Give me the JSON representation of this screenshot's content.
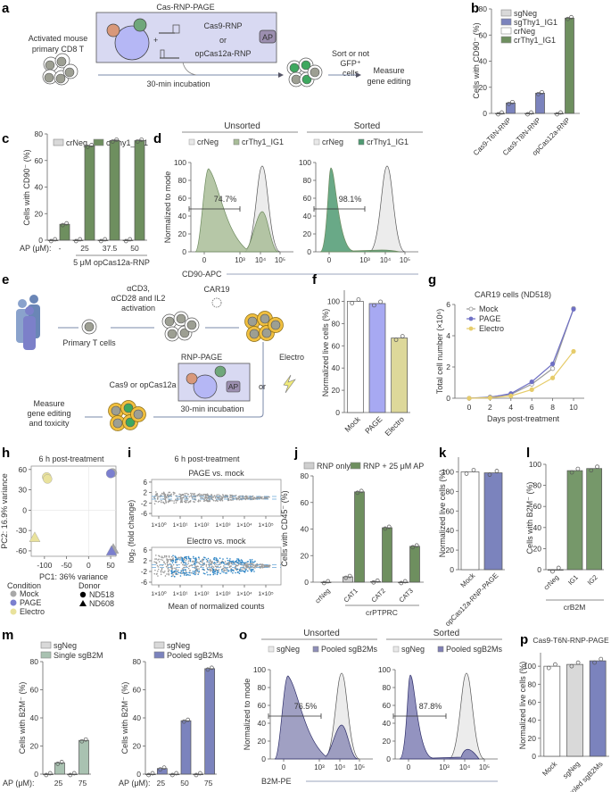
{
  "panels": {
    "a": {
      "label": "a",
      "box_title": "Cas-RNP-PAGE",
      "cas9": "Cas9-RNP",
      "or": "or",
      "opcas12a": "opCas12a-RNP",
      "ap": "AP",
      "plus": "+",
      "start": [
        "Activated mouse",
        "primary CD8 T"
      ],
      "incubation": "30-min incubation",
      "sort": [
        "Sort or not",
        "GFP⁺",
        "cells"
      ],
      "measure": [
        "Measure",
        "gene editing"
      ]
    },
    "e": {
      "label": "e",
      "activation": [
        "αCD3,",
        "αCD28 and IL2",
        "activation"
      ],
      "car": "CAR19",
      "primary": "Primary T cells",
      "rnp_page": "RNP-PAGE",
      "cas": "Cas9 or opCas12a",
      "ap": "AP",
      "incubation": "30-min incubation",
      "electro": "Electro",
      "or": "or",
      "measure": [
        "Measure",
        "gene editing",
        "and toxicity"
      ]
    }
  },
  "chart_data": [
    {
      "id": "b",
      "type": "bar",
      "label": "b",
      "ylabel": "Cells with CD90⁻ (%)",
      "ylim": [
        0,
        80
      ],
      "yticks": [
        0,
        20,
        40,
        60,
        80
      ],
      "categories": [
        "Cas9-T6N-RNP",
        "Cas9-T8N-RNP",
        "opCas12a-RNP"
      ],
      "legend": [
        {
          "name": "sgNeg",
          "color": "#d9d9d9"
        },
        {
          "name": "sgThy1_IG1",
          "color": "#7b83bd"
        },
        {
          "name": "crNeg",
          "color": "#ffffff"
        },
        {
          "name": "crThy1_IG1",
          "color": "#6e8f5f"
        }
      ],
      "series": [
        {
          "name": "sgNeg",
          "values": [
            0,
            0,
            null
          ]
        },
        {
          "name": "sgThy1_IG1",
          "values": [
            8,
            15.5,
            null
          ]
        },
        {
          "name": "crNeg",
          "values": [
            null,
            null,
            0
          ]
        },
        {
          "name": "crThy1_IG1",
          "values": [
            null,
            null,
            73
          ]
        }
      ]
    },
    {
      "id": "c",
      "type": "bar",
      "label": "c",
      "ylabel": "Cells with CD90⁻ (%)",
      "ylim": [
        0,
        80
      ],
      "yticks": [
        0,
        20,
        40,
        60,
        80
      ],
      "xprefix": "AP (μM):",
      "categories": [
        "-",
        "25",
        "37.5",
        "50"
      ],
      "group_label": "5 μM opCas12a-RNP",
      "legend": [
        {
          "name": "crNeg",
          "color": "#d9d9d9"
        },
        {
          "name": "crThy1_IG1",
          "color": "#6e8f5f"
        }
      ],
      "series": [
        {
          "name": "crNeg",
          "values": [
            0,
            0,
            0,
            0
          ]
        },
        {
          "name": "crThy1_IG1",
          "values": [
            12,
            71,
            75,
            75
          ]
        }
      ]
    },
    {
      "id": "d",
      "type": "area",
      "label": "d",
      "ylabel": "Normalized to mode",
      "xlabel": "CD90-APC",
      "yticks": [
        0,
        20,
        40,
        60,
        80,
        100
      ],
      "xticks": [
        "0",
        "10³",
        "10⁴",
        "10⁵"
      ],
      "subplots": [
        {
          "title": "Unsorted",
          "legend": [
            "crNeg",
            "crThy1_IG1"
          ],
          "gate": "74.7%",
          "color": "#a9bd98"
        },
        {
          "title": "Sorted",
          "legend": [
            "crNeg",
            "crThy1_IG1"
          ],
          "gate": "98.1%",
          "color": "#4f9a72"
        }
      ]
    },
    {
      "id": "f",
      "type": "bar",
      "label": "f",
      "ylabel": "Normalized live cells (%)",
      "ylim": [
        0,
        110
      ],
      "yticks": [
        0,
        20,
        40,
        60,
        80,
        100
      ],
      "categories": [
        "Mock",
        "PAGE",
        "Electro"
      ],
      "values": [
        100,
        98,
        67
      ],
      "colors": [
        "#ffffff",
        "#a7a9f2",
        "#ddd89a"
      ]
    },
    {
      "id": "g",
      "type": "line",
      "label": "g",
      "title": "CAR19 cells (ND518)",
      "xlabel": "Days post-treatment",
      "ylabel": "Total cell number (×10⁶)",
      "x": [
        0,
        2,
        4,
        6,
        8,
        10
      ],
      "ylim": [
        0,
        6
      ],
      "yticks": [
        0,
        2,
        4,
        6
      ],
      "series": [
        {
          "name": "Mock",
          "color": "#9a9a9a",
          "values": [
            0,
            0.08,
            0.25,
            0.9,
            1.9,
            5.75
          ]
        },
        {
          "name": "PAGE",
          "color": "#6f70c4",
          "values": [
            0,
            0.05,
            0.3,
            1.05,
            2.2,
            5.7
          ]
        },
        {
          "name": "Electro",
          "color": "#e6cc6b",
          "values": [
            0,
            0.03,
            0.15,
            0.55,
            1.3,
            3.0
          ]
        }
      ]
    },
    {
      "id": "h",
      "type": "scatter",
      "label": "h",
      "title": "6 h post-treatment",
      "xlabel": "PC1: 36% variance",
      "ylabel": "PC2: 16.9% variance",
      "xticks": [
        -100,
        -50,
        0,
        50
      ],
      "yticks": [
        -60,
        -30,
        0,
        30,
        60
      ],
      "xlim": [
        -130,
        62
      ],
      "ylim": [
        -68,
        65
      ],
      "legend_condition_title": "Condition",
      "legend_donor_title": "Donor",
      "conditions": [
        {
          "name": "Mock",
          "color": "#a8a8a8"
        },
        {
          "name": "PAGE",
          "color": "#7b7fcf"
        },
        {
          "name": "Electro",
          "color": "#e9e29c"
        }
      ],
      "donors": [
        {
          "name": "ND518",
          "shape": "circle"
        },
        {
          "name": "ND608",
          "shape": "triangle"
        }
      ],
      "points": [
        {
          "cond": "Electro",
          "donor": "ND518",
          "x": -95,
          "y": 49
        },
        {
          "cond": "Electro",
          "donor": "ND518",
          "x": -93,
          "y": 46
        },
        {
          "cond": "Electro",
          "donor": "ND608",
          "x": -122,
          "y": -40
        },
        {
          "cond": "Mock",
          "donor": "ND518",
          "x": 54,
          "y": 55
        },
        {
          "cond": "PAGE",
          "donor": "ND518",
          "x": 50,
          "y": 54
        },
        {
          "cond": "Mock",
          "donor": "ND608",
          "x": 56,
          "y": -57
        },
        {
          "cond": "PAGE",
          "donor": "ND608",
          "x": 52,
          "y": -60
        }
      ]
    },
    {
      "id": "i",
      "type": "scatter",
      "label": "i",
      "title": "6 h post-treatment",
      "xlabel": "Mean of normalized counts",
      "ylabel": "log₂ (fold change)",
      "xticks": [
        "1×10⁰",
        "1×10¹",
        "1×10²",
        "1×10³",
        "1×10⁴",
        "1×10⁵"
      ],
      "yticks": [
        -6,
        -2,
        2,
        6
      ],
      "subplots": [
        {
          "title": "PAGE vs. mock"
        },
        {
          "title": "Electro vs. mock"
        }
      ]
    },
    {
      "id": "j",
      "type": "bar",
      "label": "j",
      "ylabel": "Cells with CD45⁻ (%)",
      "ylim": [
        0,
        80
      ],
      "yticks": [
        0,
        20,
        40,
        60,
        80
      ],
      "categories": [
        "crNeg",
        "CAT1",
        "CAT2",
        "CAT3"
      ],
      "group_label": "crPTPRC",
      "legend": [
        {
          "name": "RNP only",
          "color": "#cfcfcf"
        },
        {
          "name": "RNP + 25 μM AP",
          "color": "#6e8f5f"
        }
      ],
      "series": [
        {
          "name": "RNP only",
          "values": [
            0,
            4,
            0.5,
            0
          ]
        },
        {
          "name": "RNP + 25 μM AP",
          "values": [
            null,
            68,
            41,
            27
          ]
        }
      ]
    },
    {
      "id": "k",
      "type": "bar",
      "label": "k",
      "ylabel": "Normalized live cells (%)",
      "ylim": [
        0,
        115
      ],
      "yticks": [
        0,
        20,
        40,
        60,
        80,
        100
      ],
      "categories": [
        "Mock",
        "opCas12a-RNP-PAGE"
      ],
      "values": [
        100,
        99
      ],
      "colors": [
        "#ffffff",
        "#7b83bd"
      ]
    },
    {
      "id": "l",
      "type": "bar",
      "label": "l",
      "ylabel": "Cells with B2M⁻ (%)",
      "ylim": [
        0,
        100
      ],
      "yticks": [
        0,
        20,
        40,
        60,
        80,
        100
      ],
      "categories": [
        "crNeg",
        "IG1",
        "IG2"
      ],
      "group_label": "crB2M",
      "values": [
        0,
        94,
        96
      ],
      "colors": [
        "#ffffff",
        "#76986a",
        "#76986a"
      ]
    },
    {
      "id": "m",
      "type": "bar",
      "label": "m",
      "ylabel": "Cells with B2M⁻ (%)",
      "ylim": [
        0,
        80
      ],
      "yticks": [
        0,
        20,
        40,
        60,
        80
      ],
      "xprefix": "AP (μM):",
      "categories": [
        "25",
        "75"
      ],
      "legend": [
        {
          "name": "sgNeg",
          "color": "#d9d9d9"
        },
        {
          "name": "Single sgB2M",
          "color": "#a9c2b1"
        }
      ],
      "series": [
        {
          "name": "sgNeg",
          "values": [
            0,
            0
          ]
        },
        {
          "name": "Single sgB2M",
          "values": [
            8,
            24
          ]
        }
      ]
    },
    {
      "id": "n",
      "type": "bar",
      "label": "n",
      "ylabel": "Cells with B2M⁻ (%)",
      "ylim": [
        0,
        80
      ],
      "yticks": [
        0,
        20,
        40,
        60,
        80
      ],
      "xprefix": "AP (μM):",
      "categories": [
        "25",
        "50",
        "75"
      ],
      "legend": [
        {
          "name": "sgNeg",
          "color": "#d9d9d9"
        },
        {
          "name": "Pooled sgB2Ms",
          "color": "#7b83bd"
        }
      ],
      "series": [
        {
          "name": "sgNeg",
          "values": [
            0,
            0,
            0
          ]
        },
        {
          "name": "Pooled sgB2Ms",
          "values": [
            4,
            38,
            75
          ]
        }
      ]
    },
    {
      "id": "o",
      "type": "area",
      "label": "o",
      "ylabel": "Normalized to mode",
      "xlabel": "B2M-PE",
      "yticks": [
        0,
        20,
        40,
        60,
        80,
        100
      ],
      "xticks": [
        "0",
        "10³",
        "10⁴",
        "10⁵"
      ],
      "subplots": [
        {
          "title": "Unsorted",
          "legend": [
            "sgNeg",
            "Pooled sgB2Ms"
          ],
          "gate": "76.5%",
          "color": "#8f8fb8"
        },
        {
          "title": "Sorted",
          "legend": [
            "sgNeg",
            "Pooled sgB2Ms"
          ],
          "gate": "87.8%",
          "color": "#8080b5"
        }
      ]
    },
    {
      "id": "p",
      "type": "bar",
      "label": "p",
      "title": "Cas9-T6N-RNP-PAGE",
      "ylabel": "Normalized live cells (%)",
      "ylim": [
        0,
        115
      ],
      "yticks": [
        0,
        20,
        40,
        60,
        80,
        100
      ],
      "categories": [
        "Mock",
        "sgNeg",
        "Pooled sgB2Ms"
      ],
      "values": [
        100,
        102,
        106
      ],
      "colors": [
        "#ffffff",
        "#d9d9d9",
        "#7b83bd"
      ]
    }
  ]
}
